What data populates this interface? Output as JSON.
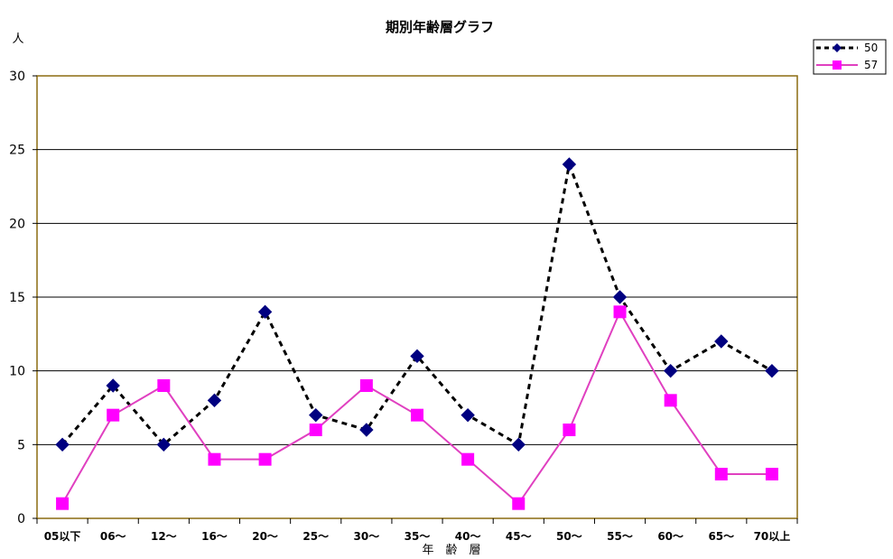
{
  "chart_data": {
    "type": "line",
    "title": "期別年齢層グラフ",
    "xlabel": "年　齢　層",
    "ylabel": "人",
    "categories": [
      "05以下",
      "06～",
      "12～",
      "16～",
      "20～",
      "25～",
      "30～",
      "35～",
      "40～",
      "45～",
      "50～",
      "55～",
      "60～",
      "65～",
      "70以上"
    ],
    "ylim": [
      0,
      30
    ],
    "yticks": [
      0,
      5,
      10,
      15,
      20,
      25,
      30
    ],
    "grid": true,
    "legend": "top-right",
    "series": [
      {
        "name": "50",
        "values": [
          5,
          9,
          5,
          8,
          14,
          7,
          6,
          11,
          7,
          5,
          24,
          15,
          10,
          12,
          10
        ],
        "color": "#000080",
        "line_color": "#000000",
        "marker": "diamond",
        "line_style": "dashed"
      },
      {
        "name": "57",
        "values": [
          1,
          7,
          9,
          4,
          4,
          6,
          9,
          7,
          4,
          1,
          6,
          14,
          8,
          3,
          3
        ],
        "color": "#ff00ff",
        "line_color": "#e040c0",
        "marker": "square",
        "line_style": "solid"
      }
    ]
  }
}
